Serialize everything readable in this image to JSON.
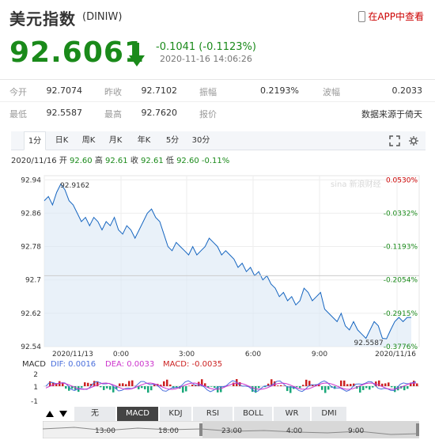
{
  "header": {
    "title": "美元指数",
    "code": "(DINIW)",
    "app_link": "在APP中查看"
  },
  "quote": {
    "price": "92.6061",
    "change": "-0.1041 (-0.1123%)",
    "time": "2020-11-16 14:06:26"
  },
  "stats": {
    "row1": [
      {
        "label": "今开",
        "value": "92.7074"
      },
      {
        "label": "昨收",
        "value": "92.7102"
      },
      {
        "label": "振幅",
        "value": "0.2193%"
      },
      {
        "label": "波幅",
        "value": "0.2033"
      }
    ],
    "row2": [
      {
        "label": "最低",
        "value": "92.5587"
      },
      {
        "label": "最高",
        "value": "92.7620"
      },
      {
        "label": "报价",
        "value": "数据来源于倚天"
      }
    ]
  },
  "tabs": [
    "1分",
    "日K",
    "周K",
    "月K",
    "年K",
    "5分",
    "30分"
  ],
  "info": {
    "date": "2020/11/16",
    "open_label": "开",
    "open": "92.60",
    "high_label": "高",
    "high": "92.61",
    "close_label": "收",
    "close": "92.61",
    "low_label": "低",
    "low": "92.60",
    "pct": "-0.11%"
  },
  "watermark": "sina 新浪财经",
  "chart_data": {
    "type": "line",
    "y_ticks": [
      "92.94",
      "92.86",
      "92.78",
      "92.7",
      "92.62",
      "92.54"
    ],
    "y_tick_values": [
      92.94,
      92.86,
      92.78,
      92.7,
      92.62,
      92.54
    ],
    "right_ticks": [
      "0.0530%",
      "-0.0332%",
      "-0.1193%",
      "-0.2054%",
      "-0.2915%",
      "-0.3776%"
    ],
    "x_labels": [
      "2020/11/13",
      "0:00",
      "3:00",
      "6:00",
      "9:00",
      "2020/11/16"
    ],
    "ylim": [
      92.54,
      92.95
    ],
    "max_label": "92.9162",
    "max_value": 92.9162,
    "min_label": "92.5587",
    "min_value": 92.5587,
    "prev_close": 92.7102,
    "series": [
      {
        "values": [
          92.89,
          92.9,
          92.88,
          92.91,
          92.93,
          92.9162,
          92.89,
          92.88,
          92.86,
          92.84,
          92.85,
          92.83,
          92.85,
          92.84,
          92.82,
          92.84,
          92.83,
          92.85,
          92.82,
          92.81,
          92.83,
          92.82,
          92.8,
          92.82,
          92.84,
          92.86,
          92.87,
          92.85,
          92.84,
          92.81,
          92.78,
          92.77,
          92.79,
          92.78,
          92.77,
          92.76,
          92.78,
          92.76,
          92.77,
          92.78,
          92.8,
          92.79,
          92.78,
          92.76,
          92.77,
          92.76,
          92.75,
          92.73,
          92.74,
          92.72,
          92.73,
          92.71,
          92.72,
          92.7,
          92.71,
          92.69,
          92.68,
          92.66,
          92.67,
          92.65,
          92.66,
          92.64,
          92.65,
          92.68,
          92.67,
          92.65,
          92.66,
          92.67,
          92.63,
          92.62,
          92.61,
          92.6,
          92.62,
          92.59,
          92.58,
          92.6,
          92.58,
          92.57,
          92.56,
          92.58,
          92.6,
          92.59,
          92.56,
          92.5587,
          92.58,
          92.6,
          92.61,
          92.6,
          92.61,
          92.61
        ]
      }
    ]
  },
  "macd": {
    "legend": {
      "name": "MACD",
      "dif_label": "DIF: 0.0016",
      "dea_label": "DEA: 0.0033",
      "macd_label": "MACD: -0.0035"
    },
    "y_ticks": [
      "2",
      "1",
      "-1"
    ],
    "colors": {
      "dif": "#4a6fdc",
      "dea": "#cc33cc",
      "up": "#cc2222",
      "down": "#1aa87a"
    }
  },
  "indicator_tabs": [
    "无",
    "MACD",
    "KDJ",
    "RSI",
    "BOLL",
    "WR",
    "DMI"
  ],
  "timeline_labels": [
    "13:00",
    "18:00",
    "23:00",
    "4:00",
    "9:00"
  ],
  "colors": {
    "down": "#1a8a1a",
    "up": "#cc0000",
    "line": "#1565c0",
    "fill": "#dbe8f5"
  }
}
